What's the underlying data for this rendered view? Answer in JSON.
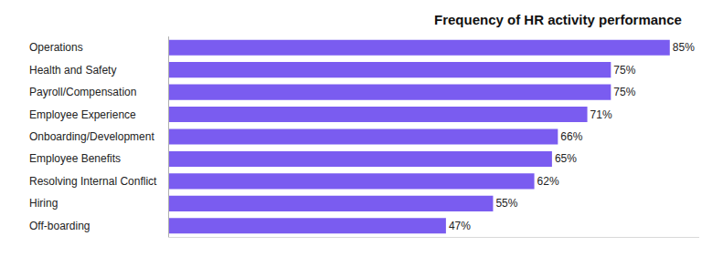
{
  "chart_data": {
    "type": "bar",
    "title": "Frequency of HR activity performance",
    "orientation": "horizontal",
    "categories": [
      "Operations",
      "Health and Safety",
      "Payroll/Compensation",
      "Employee Experience",
      "Onboarding/Development",
      "Employee Benefits",
      "Resolving Internal Conflict",
      "Hiring",
      "Off-boarding"
    ],
    "values": [
      85,
      75,
      75,
      71,
      66,
      65,
      62,
      55,
      47
    ],
    "value_labels": [
      "85%",
      "75%",
      "75%",
      "71%",
      "66%",
      "65%",
      "62%",
      "55%",
      "47%"
    ],
    "color": "#7a5cf0",
    "xlim": [
      0,
      90
    ],
    "data_labels": true,
    "tick_labels": "y",
    "grid": false
  }
}
